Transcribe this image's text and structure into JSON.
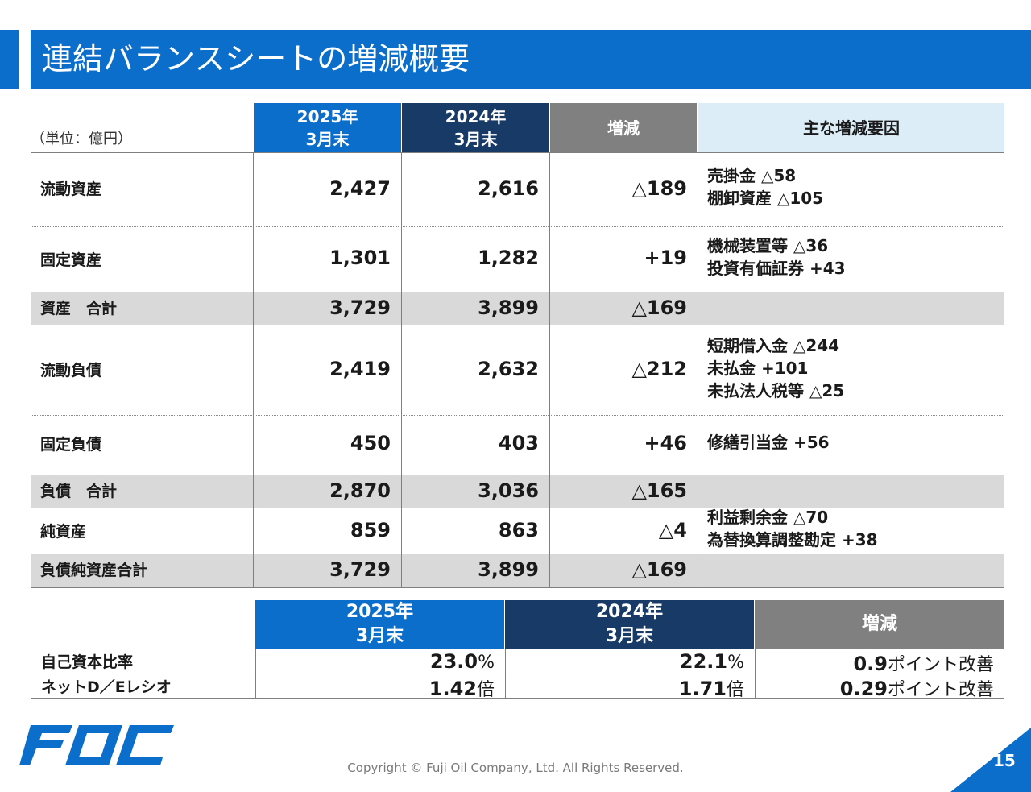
{
  "title": "連結バランスシートの増減概要",
  "unit": "（単位：億円）",
  "headers": {
    "col_2025_line1": "2025年",
    "col_2025_line2": "3月末",
    "col_2024_line1": "2024年",
    "col_2024_line2": "3月末",
    "change": "増減",
    "factors": "主な増減要因"
  },
  "rows": [
    {
      "label": "流動資産",
      "v2025": "2,427",
      "v2024": "2,616",
      "change": "△189",
      "factors": [
        "売掛金 △58",
        "棚卸資産 △105"
      ]
    },
    {
      "label": "固定資産",
      "v2025": "1,301",
      "v2024": "1,282",
      "change": "+19",
      "factors": [
        "機械装置等 △36",
        "投資有価証券 +43"
      ]
    },
    {
      "label": "資産　合計",
      "v2025": "3,729",
      "v2024": "3,899",
      "change": "△169",
      "factors": []
    },
    {
      "label": "流動負債",
      "v2025": "2,419",
      "v2024": "2,632",
      "change": "△212",
      "factors": [
        "短期借入金 △244",
        "未払金 +101",
        "未払法人税等 △25"
      ]
    },
    {
      "label": "固定負債",
      "v2025": "450",
      "v2024": "403",
      "change": "+46",
      "factors": [
        "修繕引当金 +56"
      ]
    },
    {
      "label": "負債　合計",
      "v2025": "2,870",
      "v2024": "3,036",
      "change": "△165",
      "factors": []
    },
    {
      "label": "純資産",
      "v2025": "859",
      "v2024": "863",
      "change": "△4",
      "factors": [
        "利益剰余金 △70",
        "為替換算調整勘定 +38"
      ]
    },
    {
      "label": "負債純資産合計",
      "v2025": "3,729",
      "v2024": "3,899",
      "change": "△169",
      "factors": []
    }
  ],
  "ratios": {
    "headers": {
      "col_2025_line1": "2025年",
      "col_2025_line2": "3月末",
      "col_2024_line1": "2024年",
      "col_2024_line2": "3月末",
      "change": "増減"
    },
    "rows": [
      {
        "label": "自己資本比率",
        "v2025": "23.0",
        "v2025_unit": "%",
        "v2024": "22.1",
        "v2024_unit": "%",
        "change": "0.9",
        "change_unit": "ポイント改善"
      },
      {
        "label": "ネットD／Eレシオ",
        "v2025": "1.42",
        "v2025_unit": "倍",
        "v2024": "1.71",
        "v2024_unit": "倍",
        "change": "0.29",
        "change_unit": "ポイント改善"
      }
    ]
  },
  "logo_text": "FOC",
  "copyright": "Copyright © Fuji Oil Company, Ltd. All Rights Reserved.",
  "page_number": "15",
  "colors": {
    "brand_blue": "#0b6ecb",
    "navy": "#173a66",
    "gray_header": "#808080",
    "light_blue": "#dcedf8",
    "total_row": "#d9d9d9"
  }
}
